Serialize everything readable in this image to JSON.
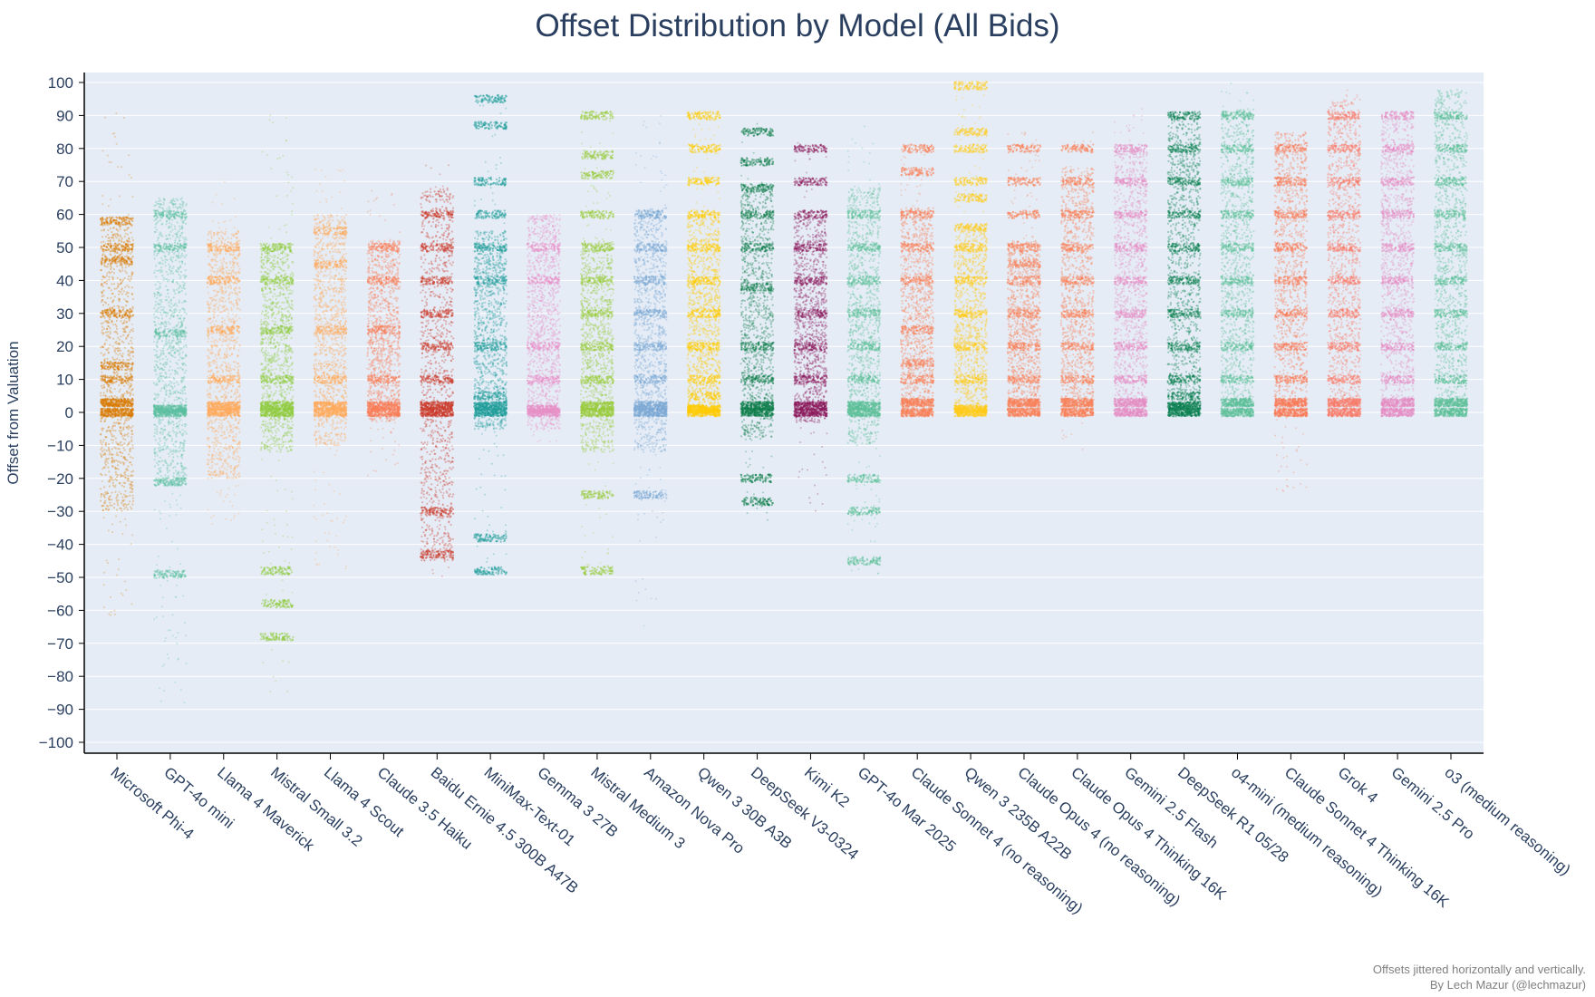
{
  "chart_data": {
    "type": "scatter",
    "title": "Offset Distribution by Model (All Bids)",
    "xlabel": "",
    "ylabel": "Offset from Valuation",
    "ylim": [
      -100,
      100
    ],
    "yticks": [
      100,
      90,
      80,
      70,
      60,
      50,
      40,
      30,
      20,
      10,
      0,
      -10,
      -20,
      -30,
      -40,
      -50,
      -60,
      -70,
      -80,
      -90,
      -100
    ],
    "grid": true,
    "legend": "none",
    "categories": [
      "Microsoft Phi-4",
      "GPT-4o mini",
      "Llama 4 Maverick",
      "Mistral Small 3.2",
      "Llama 4 Scout",
      "Claude 3.5 Haiku",
      "Baidu Ernie 4.5 300B A47B",
      "MiniMax-Text-01",
      "Gemma 3 27B",
      "Mistral Medium 3",
      "Amazon Nova Pro",
      "Qwen 3 30B A3B",
      "DeepSeek V3-0324",
      "Kimi K2",
      "GPT-4o Mar 2025",
      "Claude Sonnet 4 (no reasoning)",
      "Qwen 3 235B A22B",
      "Claude Opus 4 (no reasoning)",
      "Claude Opus 4 Thinking 16K",
      "Gemini 2.5 Flash",
      "DeepSeek R1 05/28",
      "o4-mini (medium reasoning)",
      "Claude Sonnet 4 Thinking 16K",
      "Grok 4",
      "Gemini 2.5 Pro",
      "o3 (medium reasoning)"
    ],
    "series": [
      {
        "color": "#d97a00",
        "min": -62,
        "max": 92,
        "main_min": -30,
        "main_max": 59,
        "bands": [
          0,
          3,
          10,
          14,
          30,
          46,
          50,
          58
        ]
      },
      {
        "color": "#5bbfa0",
        "min": -91,
        "max": 65,
        "main_min": -22,
        "main_max": 65,
        "bands": [
          0,
          1,
          -21,
          -49,
          24,
          50,
          60
        ]
      },
      {
        "color": "#ffa95a",
        "min": -35,
        "max": 70,
        "main_min": -20,
        "main_max": 55,
        "bands": [
          0,
          2,
          10,
          25,
          40,
          50
        ]
      },
      {
        "color": "#8fcc3e",
        "min": -85,
        "max": 92,
        "main_min": -12,
        "main_max": 51,
        "bands": [
          0,
          2,
          10,
          25,
          40,
          50,
          -48,
          -58,
          -68
        ]
      },
      {
        "color": "#ffa95a",
        "min": -48,
        "max": 75,
        "main_min": -10,
        "main_max": 60,
        "bands": [
          0,
          2,
          10,
          25,
          45,
          55
        ]
      },
      {
        "color": "#fa7e58",
        "min": -20,
        "max": 68,
        "main_min": -3,
        "main_max": 52,
        "bands": [
          0,
          2,
          10,
          25,
          40,
          50
        ]
      },
      {
        "color": "#cc3a2a",
        "min": -50,
        "max": 75,
        "main_min": -45,
        "main_max": 68,
        "bands": [
          0,
          2,
          10,
          20,
          30,
          40,
          50,
          60,
          -30,
          -43
        ]
      },
      {
        "color": "#1f9d9a",
        "min": -48,
        "max": 95,
        "main_min": -5,
        "main_max": 55,
        "bands": [
          0,
          2,
          5,
          20,
          40,
          50,
          60,
          70,
          87,
          95,
          -48,
          -38
        ]
      },
      {
        "color": "#e890c8",
        "min": -10,
        "max": 60,
        "main_min": -5,
        "main_max": 60,
        "bands": [
          0,
          1,
          10,
          20,
          40,
          50
        ]
      },
      {
        "color": "#99cc3c",
        "min": -48,
        "max": 90,
        "main_min": -12,
        "main_max": 52,
        "bands": [
          0,
          2,
          10,
          20,
          30,
          40,
          50,
          60,
          72,
          78,
          90,
          -25,
          -48
        ]
      },
      {
        "color": "#7aa8d4",
        "min": -65,
        "max": 90,
        "main_min": -12,
        "main_max": 62,
        "bands": [
          0,
          2,
          10,
          20,
          30,
          40,
          50,
          60,
          -25
        ]
      },
      {
        "color": "#ffcc00",
        "min": 0,
        "max": 90,
        "main_min": 0,
        "main_max": 60,
        "bands": [
          0,
          1,
          5,
          10,
          20,
          30,
          40,
          50,
          60,
          70,
          80,
          90
        ]
      },
      {
        "color": "#0d7d4a",
        "min": -33,
        "max": 88,
        "main_min": -8,
        "main_max": 69,
        "bands": [
          0,
          2,
          10,
          20,
          38,
          50,
          60,
          68,
          76,
          85,
          -20,
          -27
        ]
      },
      {
        "color": "#8c1a5c",
        "min": -30,
        "max": 82,
        "main_min": -3,
        "main_max": 60,
        "bands": [
          0,
          2,
          10,
          20,
          30,
          40,
          50,
          60,
          70,
          80
        ]
      },
      {
        "color": "#5cbf98",
        "min": -50,
        "max": 88,
        "main_min": -10,
        "main_max": 68,
        "bands": [
          0,
          2,
          10,
          20,
          30,
          40,
          50,
          60,
          -20,
          -30,
          -45
        ]
      },
      {
        "color": "#fa8057",
        "min": 0,
        "max": 82,
        "main_min": 0,
        "main_max": 62,
        "bands": [
          0,
          3,
          10,
          15,
          25,
          40,
          50,
          60,
          73,
          80
        ]
      },
      {
        "color": "#ffcc1a",
        "min": 0,
        "max": 100,
        "main_min": 0,
        "main_max": 57,
        "bands": [
          0,
          1,
          10,
          20,
          30,
          40,
          50,
          56,
          65,
          70,
          80,
          85,
          99
        ]
      },
      {
        "color": "#fa8057",
        "min": 0,
        "max": 85,
        "main_min": 0,
        "main_max": 52,
        "bands": [
          0,
          3,
          10,
          20,
          30,
          40,
          45,
          50,
          60,
          70,
          80
        ]
      },
      {
        "color": "#fa8057",
        "min": -12,
        "max": 85,
        "main_min": 0,
        "main_max": 74,
        "bands": [
          0,
          3,
          10,
          20,
          30,
          40,
          50,
          60,
          70,
          80
        ]
      },
      {
        "color": "#e68cc4",
        "min": 0,
        "max": 92,
        "main_min": 0,
        "main_max": 80,
        "bands": [
          0,
          3,
          10,
          20,
          30,
          40,
          50,
          60,
          70,
          80
        ]
      },
      {
        "color": "#0a8050",
        "min": 0,
        "max": 92,
        "main_min": 0,
        "main_max": 90,
        "bands": [
          0,
          2,
          5,
          10,
          20,
          30,
          40,
          50,
          60,
          70,
          80,
          90
        ]
      },
      {
        "color": "#5cbf98",
        "min": 0,
        "max": 100,
        "main_min": 0,
        "main_max": 92,
        "bands": [
          0,
          3,
          10,
          20,
          30,
          40,
          50,
          60,
          70,
          80,
          90
        ]
      },
      {
        "color": "#fa7a55",
        "min": -25,
        "max": 85,
        "main_min": 0,
        "main_max": 85,
        "bands": [
          0,
          3,
          10,
          20,
          30,
          40,
          50,
          60,
          70,
          80
        ]
      },
      {
        "color": "#fa7a68",
        "min": 0,
        "max": 98,
        "main_min": 0,
        "main_max": 95,
        "bands": [
          0,
          3,
          10,
          20,
          30,
          40,
          50,
          60,
          70,
          80,
          90
        ]
      },
      {
        "color": "#e68cc4",
        "min": 0,
        "max": 90,
        "main_min": 0,
        "main_max": 90,
        "bands": [
          0,
          3,
          10,
          20,
          30,
          40,
          50,
          60,
          70,
          80,
          90
        ]
      },
      {
        "color": "#5cbf98",
        "min": 0,
        "max": 98,
        "main_min": 0,
        "main_max": 98,
        "bands": [
          0,
          3,
          10,
          20,
          30,
          40,
          50,
          60,
          70,
          80,
          90
        ]
      }
    ]
  },
  "footnote": {
    "line1": "Offsets jittered horizontally and vertically.",
    "line2": "By Lech Mazur (@lechmazur)"
  },
  "colors": {
    "plot_background": "#e5ecf6",
    "grid": "#ffffff",
    "text": "#2a3f5f"
  }
}
